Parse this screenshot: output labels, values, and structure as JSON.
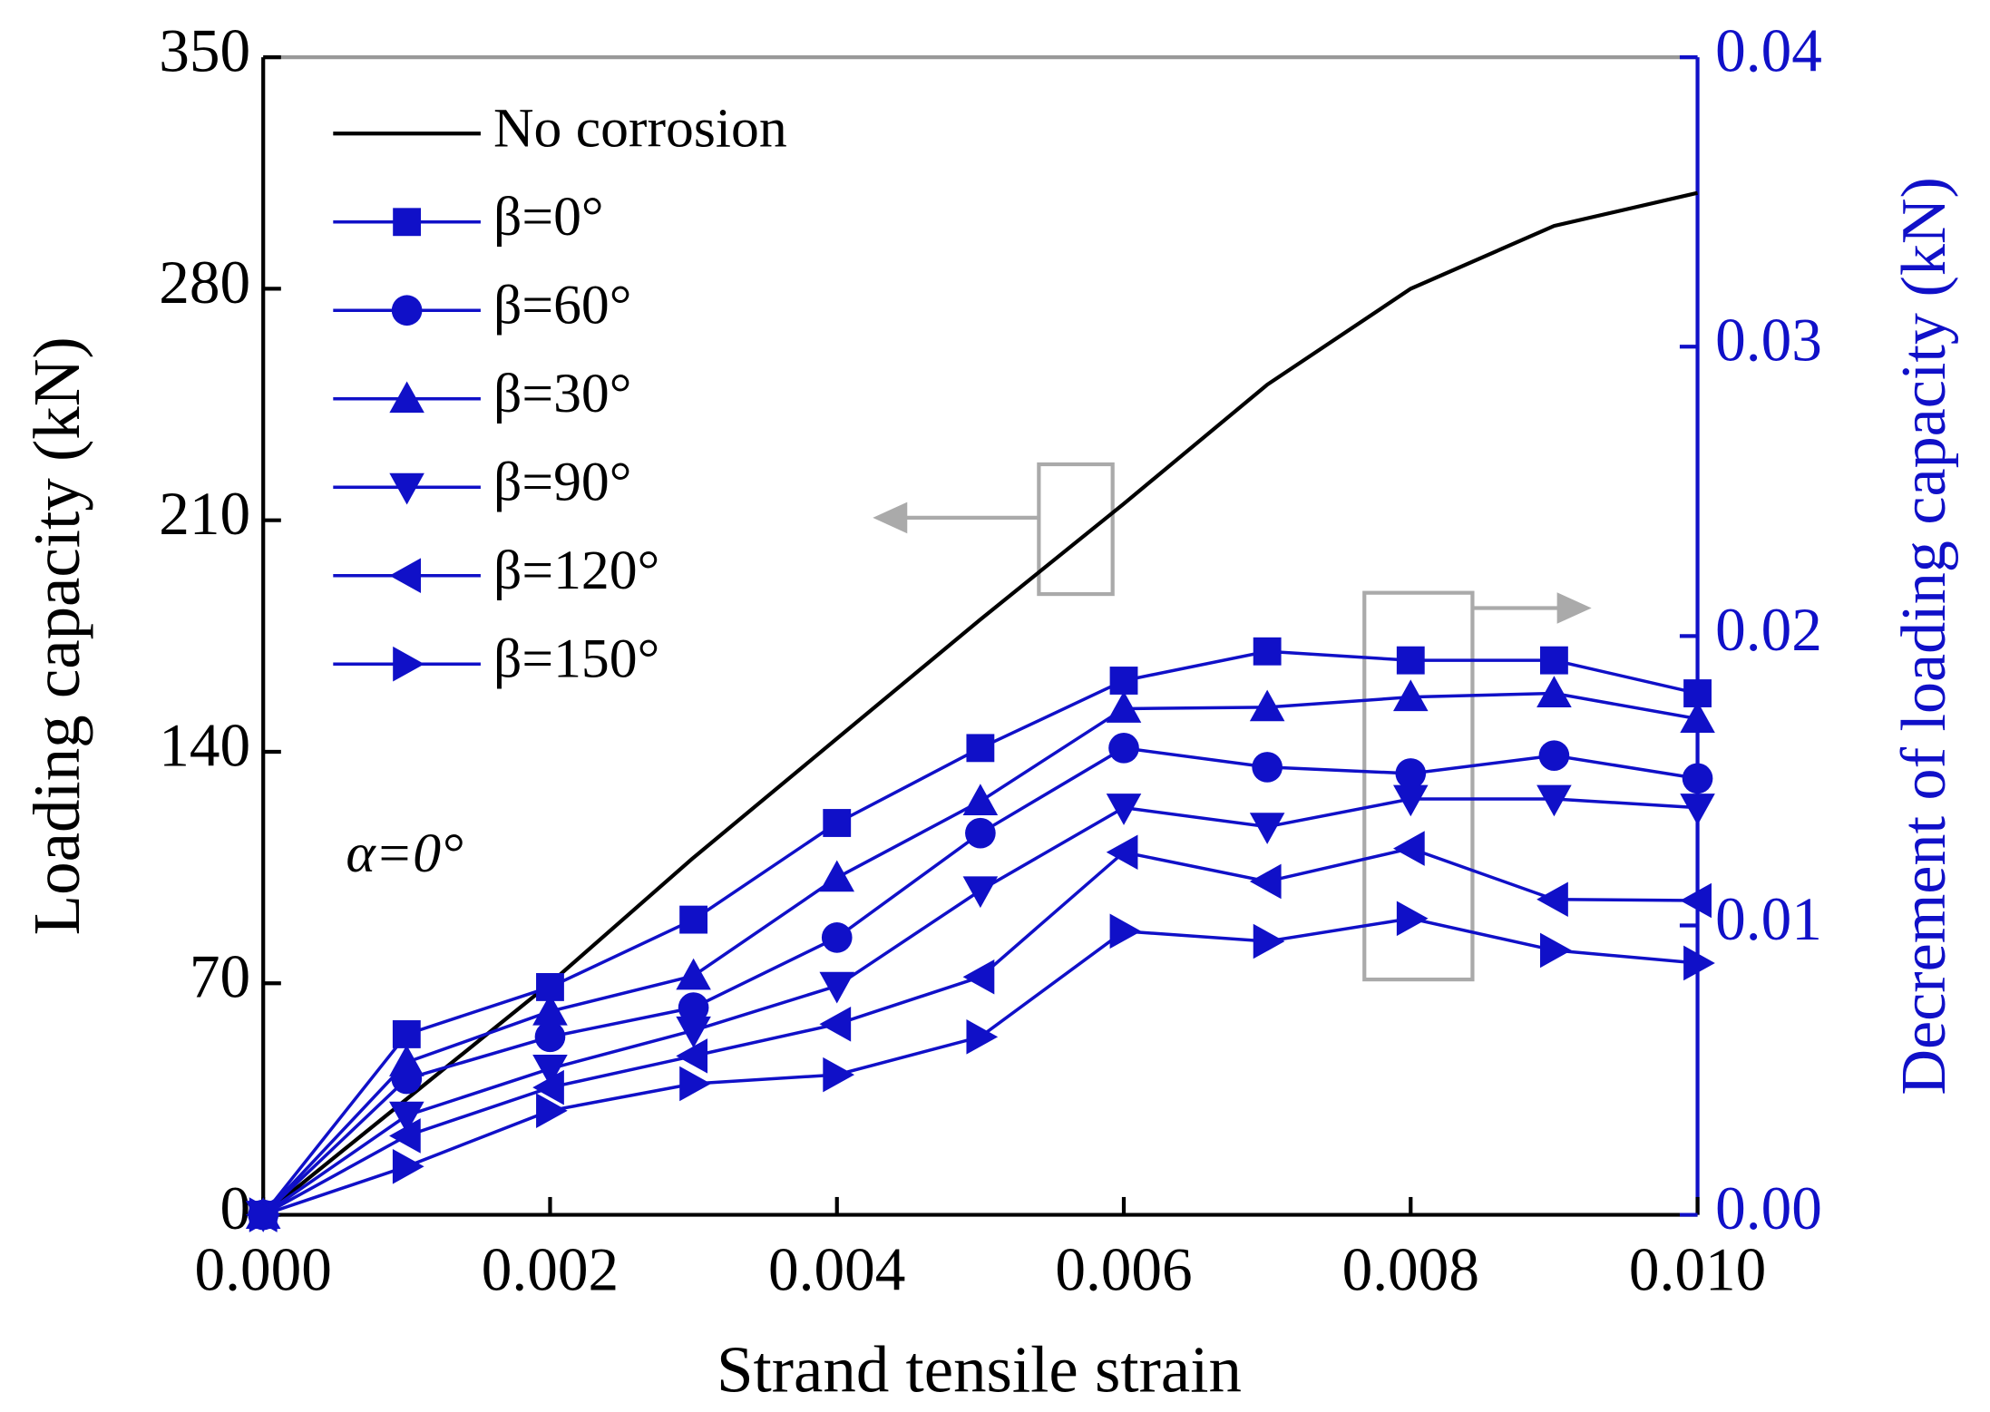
{
  "chart_data": {
    "type": "line",
    "xlabel": "Strand tensile strain",
    "ylabel": "Loading capacity (kN)",
    "y2label": "Decrement of loading capacity (kN)",
    "annotation": "α=0°",
    "x": [
      0,
      0.001,
      0.002,
      0.003,
      0.004,
      0.005,
      0.006,
      0.007,
      0.008,
      0.009,
      0.01
    ],
    "xlim": [
      0,
      0.01
    ],
    "xticks": [
      {
        "value": 0,
        "label": "0.000"
      },
      {
        "value": 0.002,
        "label": "0.002"
      },
      {
        "value": 0.004,
        "label": "0.004"
      },
      {
        "value": 0.006,
        "label": "0.006"
      },
      {
        "value": 0.008,
        "label": "0.008"
      },
      {
        "value": 0.01,
        "label": "0.010"
      }
    ],
    "ylim": [
      0,
      350
    ],
    "yticks": [
      0,
      70,
      140,
      210,
      280,
      350
    ],
    "y2lim": [
      0,
      0.04
    ],
    "y2ticks": [
      {
        "value": 0,
        "label": "0.00"
      },
      {
        "value": 0.01,
        "label": "0.01"
      },
      {
        "value": 0.02,
        "label": "0.02"
      },
      {
        "value": 0.03,
        "label": "0.03"
      },
      {
        "value": 0.04,
        "label": "0.04"
      }
    ],
    "legend": "upper left",
    "series": [
      {
        "name": "No corrosion",
        "color": "#000000",
        "marker": "none",
        "values": [
          0,
          35,
          70,
          108,
          144,
          180,
          215,
          251,
          280,
          299,
          309
        ]
      },
      {
        "name": "β=0°",
        "color": "#1010c8",
        "marker": "square",
        "axis": "y2",
        "values": [
          0,
          0.00624,
          0.00787,
          0.0102,
          0.01354,
          0.01613,
          0.01846,
          0.01947,
          0.01916,
          0.01916,
          0.01802
        ]
      },
      {
        "name": "β=60°",
        "color": "#1010c8",
        "marker": "circle",
        "axis": "y2",
        "values": [
          0,
          0.0047,
          0.00615,
          0.00716,
          0.00958,
          0.01319,
          0.01613,
          0.01547,
          0.01525,
          0.01587,
          0.01508
        ]
      },
      {
        "name": "β=30°",
        "color": "#1010c8",
        "marker": "triangle-up",
        "axis": "y2",
        "values": [
          0,
          0.00527,
          0.00703,
          0.00826,
          0.01165,
          0.01429,
          0.01749,
          0.01754,
          0.01789,
          0.01802,
          0.01714
        ]
      },
      {
        "name": "β=90°",
        "color": "#1010c8",
        "marker": "triangle-down",
        "axis": "y2",
        "values": [
          0,
          0.00343,
          0.00505,
          0.00637,
          0.00791,
          0.01121,
          0.01407,
          0.01341,
          0.01437,
          0.01437,
          0.01407
        ]
      },
      {
        "name": "β=120°",
        "color": "#1010c8",
        "marker": "triangle-left",
        "axis": "y2",
        "values": [
          0,
          0.00273,
          0.0044,
          0.00549,
          0.00659,
          0.00822,
          0.01253,
          0.01152,
          0.01266,
          0.0109,
          0.01086
        ]
      },
      {
        "name": "β=150°",
        "color": "#1010c8",
        "marker": "triangle-right",
        "axis": "y2",
        "values": [
          0,
          0.00167,
          0.0036,
          0.00453,
          0.00484,
          0.00615,
          0.0098,
          0.00945,
          0.01024,
          0.00914,
          0.0087
        ]
      }
    ]
  }
}
